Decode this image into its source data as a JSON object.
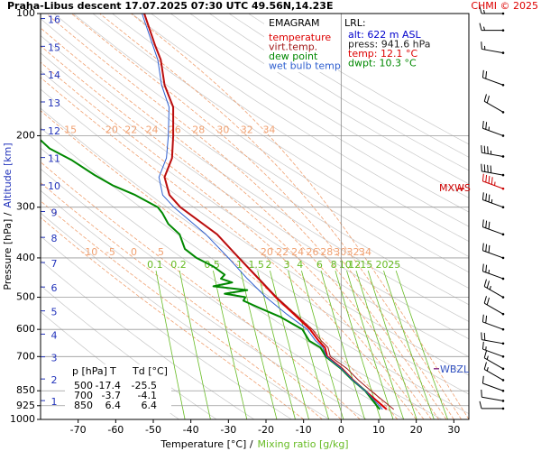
{
  "chart_data": {
    "type": "emagram",
    "title": "Praha-Libus  descent  17.07.2025 07:30 UTC  49.56N,14.23E",
    "credit": "CHMI © 2025",
    "xlabel": "Temperature [°C] /",
    "xlabel2": "Mixing ratio [g/kg]",
    "ylabel": "Pressure [hPa] /",
    "ylabel2": "Altitude [km]",
    "xlim": [
      -80,
      34
    ],
    "xticks": [
      -70,
      -60,
      -50,
      -40,
      -30,
      -20,
      -10,
      0,
      10,
      20,
      30
    ],
    "ylim": [
      100,
      1000
    ],
    "ylog": true,
    "yticks": [
      100,
      200,
      300,
      400,
      500,
      600,
      700,
      850,
      925,
      1000
    ],
    "altitude_km": [
      1,
      2,
      3,
      4,
      5,
      6,
      7,
      8,
      9,
      10,
      11,
      12,
      13,
      14,
      15,
      16
    ],
    "legend_title": "EMAGRAM",
    "series": [
      {
        "name": "temperature",
        "color": "#dd0000",
        "pressure": [
          945,
          925,
          850,
          800,
          750,
          700,
          665,
          640,
          600,
          550,
          500,
          450,
          400,
          350,
          300,
          280,
          253,
          227,
          200,
          170,
          150,
          130,
          120,
          100
        ],
        "temperature": [
          12.1,
          11.0,
          6.4,
          3.2,
          0.3,
          -3.7,
          -4.3,
          -6.0,
          -8.3,
          -12.6,
          -17.4,
          -22,
          -27.2,
          -33,
          -42.8,
          -45.7,
          -47,
          -45,
          -44.7,
          -44.7,
          -47,
          -48,
          -49.5,
          -52.4
        ]
      },
      {
        "name": "virt.temp.",
        "color": "#a01818",
        "pressure": [
          945,
          925,
          850,
          800,
          750,
          700,
          665,
          640,
          600,
          550,
          500,
          450,
          400,
          350,
          300,
          280,
          253,
          227,
          200,
          170,
          150,
          130,
          120,
          100
        ],
        "temperature": [
          14.0,
          12.8,
          7.9,
          4.6,
          1.6,
          -2.9,
          -3.5,
          -5.3,
          -7.7,
          -12.2,
          -17.1,
          -21.8,
          -27.1,
          -33,
          -42.8,
          -45.7,
          -47,
          -45,
          -44.7,
          -44.7,
          -47,
          -48,
          -49.5,
          -52.4
        ]
      },
      {
        "name": "dew point",
        "color": "#008800",
        "pressure": [
          945,
          925,
          850,
          800,
          750,
          700,
          665,
          640,
          600,
          560,
          530,
          510,
          500,
          490,
          480,
          470,
          460,
          450,
          440,
          420,
          400,
          380,
          350,
          330,
          310,
          300,
          280,
          265,
          250,
          230,
          215,
          205
        ],
        "temperature": [
          10.3,
          9.5,
          6.4,
          3.0,
          0.0,
          -4.1,
          -5.5,
          -8.5,
          -10.3,
          -16,
          -22,
          -26,
          -25.5,
          -31,
          -25,
          -34,
          -29,
          -32,
          -31,
          -34,
          -38.5,
          -41.6,
          -43,
          -46,
          -47.6,
          -48.8,
          -54.8,
          -60.8,
          -65.6,
          -71.6,
          -77.6,
          -80
        ]
      },
      {
        "name": "wet bulb temp.",
        "color": "#3060d0",
        "pressure": [
          945,
          925,
          850,
          800,
          750,
          700,
          665,
          640,
          600,
          550,
          500,
          450,
          400,
          350,
          300,
          280,
          253,
          227,
          200,
          170,
          150,
          130,
          100
        ],
        "temperature": [
          11.0,
          10.2,
          6.4,
          3.1,
          0.1,
          -3.9,
          -4.8,
          -6.8,
          -9.0,
          -14.5,
          -20,
          -25,
          -30,
          -36,
          -44.5,
          -47.5,
          -48.5,
          -46.5,
          -46,
          -45.8,
          -47.8,
          -48.8,
          -53
        ]
      }
    ],
    "mixing_ratio_lines": [
      0.1,
      0.2,
      0.5,
      1,
      1.5,
      2,
      3,
      4,
      6,
      8,
      10,
      12,
      15,
      20,
      25
    ],
    "mixing_ratio_color": "#66bb22",
    "moist_adiabats": {
      "color": "#f0a070",
      "upper_labels": [
        15,
        20,
        22,
        24,
        26,
        28,
        30,
        32,
        34
      ],
      "lower_labels": [
        -10,
        -5,
        0,
        5,
        20,
        22,
        24,
        26,
        28,
        30,
        32,
        34
      ]
    },
    "lrl": {
      "title": "LRL:",
      "lines": [
        {
          "text": "alt: 622 m ASL",
          "color": "#0000cc"
        },
        {
          "text": "press: 941.6 hPa",
          "color": "#222222"
        },
        {
          "text": "temp: 12.1 °C",
          "color": "#dd0000"
        },
        {
          "text": "dwpt: 10.3 °C",
          "color": "#008800"
        }
      ]
    },
    "table": {
      "header": [
        "p [hPa]",
        "T",
        "Td [°C]"
      ],
      "rows": [
        [
          500,
          -17.4,
          -25.5
        ],
        [
          700,
          -3.7,
          -4.1
        ],
        [
          850,
          6.4,
          6.4
        ]
      ]
    },
    "wind": {
      "pressure": [
        940,
        900,
        850,
        800,
        750,
        700,
        650,
        600,
        550,
        500,
        450,
        400,
        350,
        300,
        270,
        250,
        225,
        200,
        175,
        150,
        125,
        110,
        100
      ],
      "direction": [
        270,
        280,
        290,
        300,
        300,
        290,
        280,
        290,
        300,
        300,
        290,
        290,
        290,
        290,
        290,
        280,
        280,
        290,
        300,
        290,
        280,
        270,
        270
      ],
      "speed": [
        10,
        10,
        10,
        15,
        15,
        15,
        20,
        20,
        20,
        25,
        25,
        30,
        30,
        35,
        45,
        40,
        35,
        25,
        20,
        20,
        15,
        15,
        15
      ],
      "color": "#000000"
    },
    "max_wind": {
      "label": "MXWS",
      "pressure": 270,
      "color": "#cc0000"
    },
    "wbzl": {
      "label": "WBZL",
      "pressure": 750,
      "color": "#3050c0"
    }
  }
}
